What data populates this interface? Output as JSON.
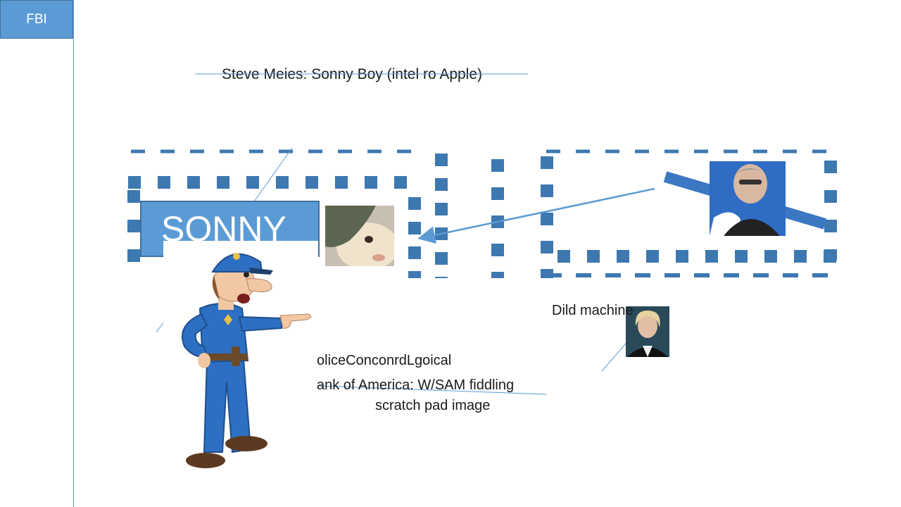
{
  "sidebar": {
    "tab_label": "FBI"
  },
  "slide": {
    "title": "Steve Meies: Sonny Boy (intel ro Apple)",
    "sonny_label": "SONNY",
    "dild_label": "Dild machine",
    "police_label": "oliceConconrdLgoical",
    "bank_label": "ank of America: W/SAM fiddling",
    "scratch_label": "scratch pad image"
  },
  "colors": {
    "accent": "#5b9bd5",
    "accent_dark": "#41719c",
    "dots": "#3d78b0",
    "police_blue": "#2d6fc2"
  },
  "icons": {
    "police": "police-officer-cartoon-icon",
    "hamster": "hamster-photo",
    "man": "man-photo",
    "woman": "woman-photo"
  }
}
